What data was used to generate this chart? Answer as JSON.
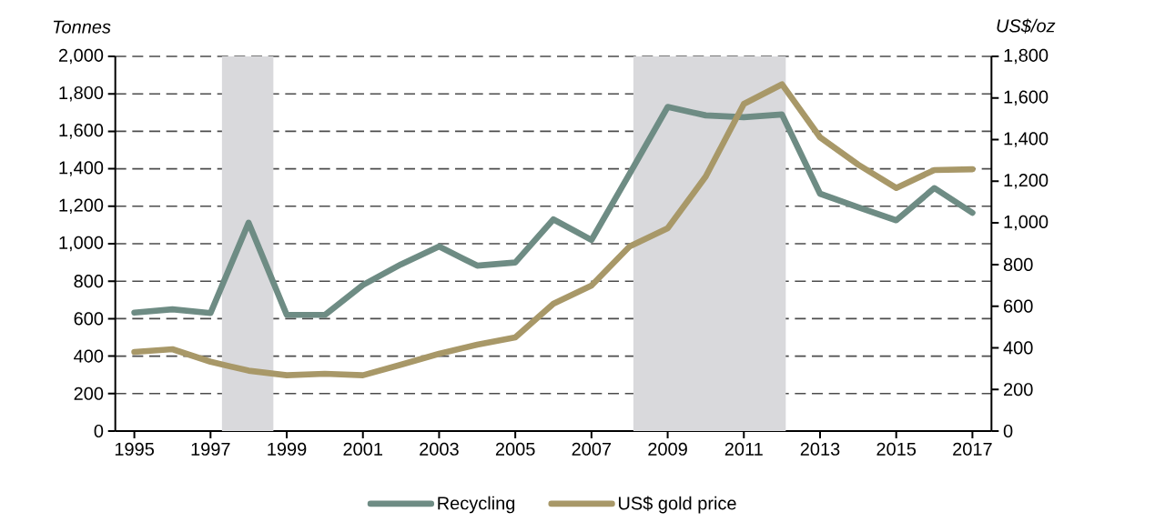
{
  "chart_data": {
    "type": "line",
    "ylabel": "Tonnes",
    "y2label": "US$/oz",
    "x": [
      1995,
      1996,
      1997,
      1998,
      1999,
      2000,
      2001,
      2002,
      2003,
      2004,
      2005,
      2006,
      2007,
      2008,
      2009,
      2010,
      2011,
      2012,
      2013,
      2014,
      2015,
      2016,
      2017
    ],
    "series": [
      {
        "name": "Recycling",
        "color": "#6e8c84",
        "values": [
          632,
          650,
          630,
          1112,
          620,
          620,
          780,
          890,
          985,
          883,
          900,
          1130,
          1020,
          1373,
          1730,
          1685,
          1675,
          1690,
          1267,
          1195,
          1125,
          1297,
          1165
        ]
      },
      {
        "name": "US$ gold price",
        "color": "#a89868",
        "axis": "y2",
        "values": [
          380,
          393,
          333,
          290,
          268,
          275,
          268,
          319,
          371,
          415,
          450,
          612,
          699,
          887,
          974,
          1223,
          1572,
          1666,
          1411,
          1280,
          1168,
          1254,
          1258
        ]
      }
    ],
    "xlim": [
      1994.5,
      2017.5
    ],
    "xticks": [
      1995,
      1997,
      1999,
      2001,
      2003,
      2005,
      2007,
      2009,
      2011,
      2013,
      2015,
      2017
    ],
    "ylim": [
      0,
      2000
    ],
    "yticks": [
      0,
      200,
      400,
      600,
      800,
      {
        "value": 1000,
        "label": "1,000"
      },
      {
        "value": 1200,
        "label": "1,200"
      },
      {
        "value": 1400,
        "label": "1,400"
      },
      {
        "value": 1600,
        "label": "1,600"
      },
      {
        "value": 1800,
        "label": "1,800"
      },
      {
        "value": 2000,
        "label": "2,000"
      }
    ],
    "y2lim": [
      0,
      1800
    ],
    "y2ticks": [
      0,
      200,
      400,
      600,
      800,
      {
        "value": 1000,
        "label": "1,000"
      },
      {
        "value": 1200,
        "label": "1,200"
      },
      {
        "value": 1400,
        "label": "1,400"
      },
      {
        "value": 1600,
        "label": "1,600"
      },
      {
        "value": 1800,
        "label": "1,800"
      }
    ],
    "bands": [
      {
        "axis": "x",
        "from": 1997.3,
        "to": 1998.65,
        "color": "#d9d9dc"
      },
      {
        "axis": "x",
        "from": 2008.1,
        "to": 2012.1,
        "color": "#d9d9dc"
      }
    ],
    "grid": "y",
    "legend": "bottom"
  }
}
